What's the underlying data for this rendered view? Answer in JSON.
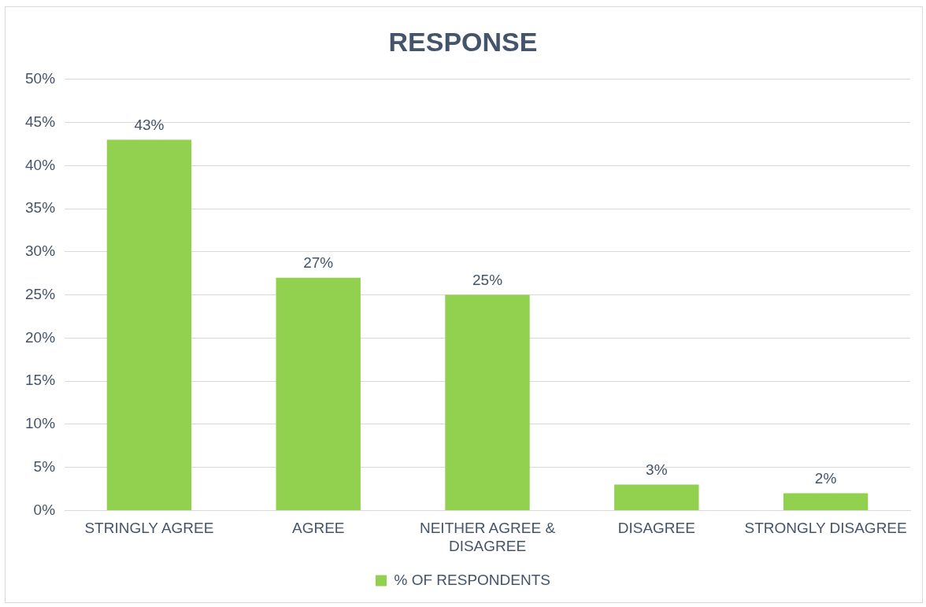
{
  "chart_data": {
    "type": "bar",
    "title": "RESPONSE",
    "categories": [
      "STRINGLY AGREE",
      "AGREE",
      "NEITHER AGREE & DISAGREE",
      "DISAGREE",
      "STRONGLY DISAGREE"
    ],
    "series": [
      {
        "name": "% OF RESPONDENTS",
        "color": "#92d050",
        "values": [
          43,
          27,
          25,
          3,
          2
        ],
        "value_labels": [
          "43%",
          "27%",
          "25%",
          "3%",
          "2%"
        ]
      }
    ],
    "ylim": [
      0,
      50
    ],
    "yticks": [
      {
        "value": 0,
        "label": "0%"
      },
      {
        "value": 5,
        "label": "5%"
      },
      {
        "value": 10,
        "label": "10%"
      },
      {
        "value": 15,
        "label": "15%"
      },
      {
        "value": 20,
        "label": "20%"
      },
      {
        "value": 25,
        "label": "25%"
      },
      {
        "value": 30,
        "label": "30%"
      },
      {
        "value": 35,
        "label": "35%"
      },
      {
        "value": 40,
        "label": "40%"
      },
      {
        "value": 45,
        "label": "45%"
      },
      {
        "value": 50,
        "label": "50%"
      }
    ],
    "grid": "y",
    "legend": "bottom"
  }
}
